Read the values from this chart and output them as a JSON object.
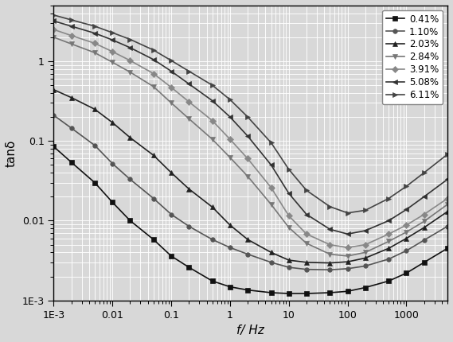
{
  "title": "",
  "xlabel": "f/ Hz",
  "ylabel": "tanδ",
  "xlim": [
    0.001,
    5000
  ],
  "ylim": [
    0.001,
    5
  ],
  "series": [
    {
      "label": "0.41%",
      "color": "#111111",
      "marker": "s",
      "markersize": 4,
      "x": [
        0.001,
        0.002,
        0.005,
        0.01,
        0.02,
        0.05,
        0.1,
        0.2,
        0.5,
        1,
        2,
        5,
        10,
        20,
        50,
        100,
        200,
        500,
        1000,
        2000,
        5000
      ],
      "y": [
        0.085,
        0.054,
        0.03,
        0.017,
        0.01,
        0.0058,
        0.0036,
        0.0026,
        0.00175,
        0.00148,
        0.00135,
        0.00125,
        0.00122,
        0.00122,
        0.00125,
        0.0013,
        0.00145,
        0.00175,
        0.0022,
        0.003,
        0.0045
      ]
    },
    {
      "label": "1.10%",
      "color": "#555555",
      "marker": "o",
      "markersize": 4,
      "x": [
        0.001,
        0.002,
        0.005,
        0.01,
        0.02,
        0.05,
        0.1,
        0.2,
        0.5,
        1,
        2,
        5,
        10,
        20,
        50,
        100,
        200,
        500,
        1000,
        2000,
        5000
      ],
      "y": [
        0.21,
        0.145,
        0.088,
        0.052,
        0.033,
        0.019,
        0.012,
        0.0085,
        0.0058,
        0.0046,
        0.0038,
        0.003,
        0.0026,
        0.00245,
        0.00242,
        0.0025,
        0.0027,
        0.0033,
        0.0042,
        0.0057,
        0.0085
      ]
    },
    {
      "label": "2.03%",
      "color": "#222222",
      "marker": "^",
      "markersize": 4,
      "x": [
        0.001,
        0.002,
        0.005,
        0.01,
        0.02,
        0.05,
        0.1,
        0.2,
        0.5,
        1,
        2,
        5,
        10,
        20,
        50,
        100,
        200,
        500,
        1000,
        2000,
        5000
      ],
      "y": [
        0.44,
        0.35,
        0.25,
        0.17,
        0.11,
        0.066,
        0.04,
        0.025,
        0.0148,
        0.0088,
        0.0058,
        0.004,
        0.0032,
        0.003,
        0.00295,
        0.00305,
        0.0034,
        0.0045,
        0.006,
        0.0082,
        0.013
      ]
    },
    {
      "label": "2.84%",
      "color": "#777777",
      "marker": "v",
      "markersize": 4,
      "x": [
        0.001,
        0.002,
        0.005,
        0.01,
        0.02,
        0.05,
        0.1,
        0.2,
        0.5,
        1,
        2,
        5,
        10,
        20,
        50,
        100,
        200,
        500,
        1000,
        2000,
        5000
      ],
      "y": [
        2.0,
        1.65,
        1.28,
        0.97,
        0.73,
        0.48,
        0.3,
        0.19,
        0.105,
        0.062,
        0.036,
        0.016,
        0.0082,
        0.0052,
        0.0038,
        0.0036,
        0.004,
        0.0055,
        0.0072,
        0.0098,
        0.016
      ]
    },
    {
      "label": "3.91%",
      "color": "#888888",
      "marker": "D",
      "markersize": 4,
      "x": [
        0.001,
        0.002,
        0.005,
        0.01,
        0.02,
        0.05,
        0.1,
        0.2,
        0.5,
        1,
        2,
        5,
        10,
        20,
        50,
        100,
        200,
        500,
        1000,
        2000,
        5000
      ],
      "y": [
        2.5,
        2.1,
        1.68,
        1.32,
        1.02,
        0.7,
        0.47,
        0.31,
        0.18,
        0.105,
        0.06,
        0.026,
        0.0115,
        0.0068,
        0.005,
        0.0046,
        0.005,
        0.0068,
        0.0088,
        0.012,
        0.019
      ]
    },
    {
      "label": "5.08%",
      "color": "#333333",
      "marker": "<",
      "markersize": 4,
      "x": [
        0.001,
        0.002,
        0.005,
        0.01,
        0.02,
        0.05,
        0.1,
        0.2,
        0.5,
        1,
        2,
        5,
        10,
        20,
        50,
        100,
        200,
        500,
        1000,
        2000,
        5000
      ],
      "y": [
        3.2,
        2.75,
        2.25,
        1.85,
        1.48,
        1.05,
        0.75,
        0.52,
        0.32,
        0.2,
        0.115,
        0.05,
        0.022,
        0.012,
        0.0078,
        0.0068,
        0.0075,
        0.01,
        0.0138,
        0.02,
        0.033
      ]
    },
    {
      "label": "6.11%",
      "color": "#444444",
      "marker": ">",
      "markersize": 4,
      "x": [
        0.001,
        0.002,
        0.005,
        0.01,
        0.02,
        0.05,
        0.1,
        0.2,
        0.5,
        1,
        2,
        5,
        10,
        20,
        50,
        100,
        200,
        500,
        1000,
        2000,
        5000
      ],
      "y": [
        3.8,
        3.3,
        2.75,
        2.28,
        1.88,
        1.38,
        1.02,
        0.75,
        0.5,
        0.33,
        0.2,
        0.095,
        0.044,
        0.024,
        0.015,
        0.0125,
        0.0135,
        0.019,
        0.027,
        0.04,
        0.068
      ]
    }
  ],
  "background_color": "#d8d8d8",
  "grid_color": "#ffffff",
  "legend_fontsize": 8.5,
  "axis_fontsize": 11,
  "tick_labelsize": 9
}
